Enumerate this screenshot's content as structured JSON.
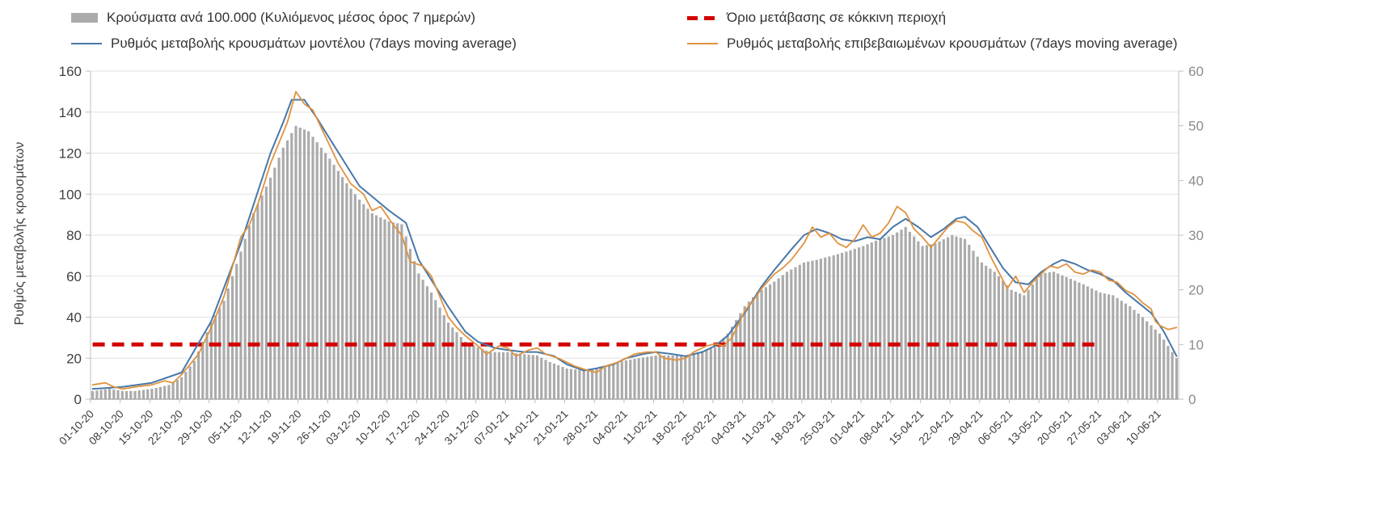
{
  "colors": {
    "bars": "#ababab",
    "model": "#4878a8",
    "confirmed": "#e0923f",
    "threshold": "#d40000",
    "grid": "#e2e2e2",
    "axis": "#bfbfbf",
    "axis_dark": "#a0a0a0",
    "tick_text": "#8c8c8c",
    "xlabel_text": "#3a3a3a"
  },
  "chart_data": {
    "type": "bar+line combo",
    "title": "",
    "ylabel_left": "Ρυθμός μεταβολής κρουσμάτων",
    "legend": {
      "bars_label": "Κρούσματα ανά 100.000 (Κυλιόμενος μέσος όρος 7 ημερών)",
      "threshold_label": "Όριο μετάβασης σε κόκκινη περιοχή",
      "model_label": "Ρυθμός μεταβολής κρουσμάτων μοντέλου (7days moving average)",
      "confirmed_label": "Ρυθμός μεταβολής επιβεβαιωμένων κρουσμάτων (7days moving average)"
    },
    "left_axis": {
      "min": 0,
      "max": 160,
      "ticks": [
        0,
        20,
        40,
        60,
        80,
        100,
        120,
        140,
        160
      ]
    },
    "right_axis": {
      "min": 0,
      "max": 60,
      "ticks": [
        0,
        10,
        20,
        30,
        40,
        50,
        60
      ]
    },
    "x_ticks": {
      "interval_days": 7,
      "labels": [
        "01-10-20",
        "08-10-20",
        "15-10-20",
        "22-10-20",
        "29-10-20",
        "05-11-20",
        "12-11-20",
        "19-11-20",
        "26-11-20",
        "03-12-20",
        "10-12-20",
        "17-12-20",
        "24-12-20",
        "31-12-20",
        "07-01-21",
        "14-01-21",
        "21-01-21",
        "28-01-21",
        "04-02-21",
        "11-02-21",
        "18-02-21",
        "25-02-21",
        "04-03-21",
        "11-03-21",
        "18-03-21",
        "25-03-21",
        "01-04-21",
        "08-04-21",
        "15-04-21",
        "22-04-21",
        "29-04-21",
        "06-05-21",
        "13-05-21",
        "20-05-21",
        "27-05-21",
        "03-06-21",
        "10-06-21"
      ]
    },
    "days_total": 257,
    "threshold": {
      "axis": "right",
      "value": 10,
      "start_day": 0,
      "end_day": 237,
      "style": "dashed"
    },
    "series": [
      {
        "id": "bars",
        "type": "bar",
        "axis": "right",
        "points": [
          [
            0,
            1.5
          ],
          [
            4,
            1.9
          ],
          [
            7,
            1.5
          ],
          [
            10,
            1.5
          ],
          [
            14,
            1.9
          ],
          [
            18,
            2.6
          ],
          [
            21,
            4
          ],
          [
            24,
            7
          ],
          [
            28,
            14
          ],
          [
            31,
            18
          ],
          [
            35,
            27
          ],
          [
            38,
            34
          ],
          [
            42,
            40.5
          ],
          [
            45,
            46
          ],
          [
            48,
            50
          ],
          [
            51,
            49
          ],
          [
            56,
            44
          ],
          [
            60,
            39.5
          ],
          [
            63,
            36.5
          ],
          [
            66,
            34
          ],
          [
            70,
            32.5
          ],
          [
            73,
            32
          ],
          [
            77,
            23
          ],
          [
            80,
            19.5
          ],
          [
            84,
            14
          ],
          [
            88,
            10.5
          ],
          [
            91,
            9.5
          ],
          [
            94,
            8.6
          ],
          [
            98,
            8.6
          ],
          [
            101,
            8.3
          ],
          [
            105,
            8
          ],
          [
            108,
            6.8
          ],
          [
            112,
            5.6
          ],
          [
            116,
            5.3
          ],
          [
            119,
            5.6
          ],
          [
            122,
            6.4
          ],
          [
            126,
            7.1
          ],
          [
            129,
            7.5
          ],
          [
            133,
            8
          ],
          [
            136,
            8
          ],
          [
            140,
            8
          ],
          [
            143,
            8.6
          ],
          [
            147,
            9.5
          ],
          [
            150,
            12
          ],
          [
            154,
            17
          ],
          [
            157,
            19.5
          ],
          [
            161,
            21.5
          ],
          [
            164,
            23.3
          ],
          [
            168,
            25
          ],
          [
            171,
            25.5
          ],
          [
            175,
            26.3
          ],
          [
            178,
            27
          ],
          [
            182,
            28
          ],
          [
            185,
            29
          ],
          [
            189,
            30
          ],
          [
            192,
            31.5
          ],
          [
            196,
            28
          ],
          [
            199,
            28.5
          ],
          [
            203,
            30
          ],
          [
            206,
            29.3
          ],
          [
            210,
            25
          ],
          [
            213,
            23.3
          ],
          [
            217,
            20
          ],
          [
            220,
            19
          ],
          [
            224,
            23
          ],
          [
            227,
            23.3
          ],
          [
            231,
            22
          ],
          [
            234,
            21
          ],
          [
            238,
            19.5
          ],
          [
            241,
            19
          ],
          [
            245,
            17
          ],
          [
            248,
            15
          ],
          [
            252,
            12
          ],
          [
            256,
            7.5
          ]
        ]
      },
      {
        "id": "model",
        "type": "line",
        "axis": "left",
        "points": [
          [
            0,
            5
          ],
          [
            7,
            6
          ],
          [
            14,
            8
          ],
          [
            21,
            13
          ],
          [
            28,
            38
          ],
          [
            35,
            76
          ],
          [
            42,
            120
          ],
          [
            45,
            135
          ],
          [
            47,
            146
          ],
          [
            50,
            146
          ],
          [
            53,
            137
          ],
          [
            56,
            127
          ],
          [
            63,
            104
          ],
          [
            70,
            92
          ],
          [
            74,
            86
          ],
          [
            77,
            68
          ],
          [
            84,
            45
          ],
          [
            88,
            33
          ],
          [
            91,
            28
          ],
          [
            95,
            25
          ],
          [
            98,
            24
          ],
          [
            102,
            23
          ],
          [
            105,
            23
          ],
          [
            109,
            21
          ],
          [
            112,
            17
          ],
          [
            116,
            14
          ],
          [
            119,
            15
          ],
          [
            123,
            17
          ],
          [
            126,
            20
          ],
          [
            130,
            22
          ],
          [
            133,
            23
          ],
          [
            137,
            22
          ],
          [
            140,
            21
          ],
          [
            144,
            23
          ],
          [
            147,
            26
          ],
          [
            150,
            31
          ],
          [
            154,
            42
          ],
          [
            158,
            55
          ],
          [
            161,
            63
          ],
          [
            165,
            73
          ],
          [
            168,
            80
          ],
          [
            171,
            83
          ],
          [
            174,
            81
          ],
          [
            177,
            78
          ],
          [
            180,
            77
          ],
          [
            183,
            79
          ],
          [
            186,
            78
          ],
          [
            189,
            84
          ],
          [
            192,
            88
          ],
          [
            195,
            84
          ],
          [
            198,
            79
          ],
          [
            201,
            83
          ],
          [
            204,
            88
          ],
          [
            206,
            89
          ],
          [
            209,
            84
          ],
          [
            212,
            74
          ],
          [
            215,
            64
          ],
          [
            218,
            57
          ],
          [
            221,
            56
          ],
          [
            224,
            62
          ],
          [
            227,
            66
          ],
          [
            229,
            68
          ],
          [
            232,
            66
          ],
          [
            235,
            63
          ],
          [
            238,
            61
          ],
          [
            241,
            58
          ],
          [
            244,
            52
          ],
          [
            247,
            47
          ],
          [
            250,
            42
          ],
          [
            253,
            33
          ],
          [
            256,
            21
          ]
        ]
      },
      {
        "id": "confirmed",
        "type": "line",
        "axis": "left",
        "points": [
          [
            0,
            7
          ],
          [
            3,
            8
          ],
          [
            5,
            6
          ],
          [
            7,
            5
          ],
          [
            10,
            6
          ],
          [
            14,
            7
          ],
          [
            17,
            9
          ],
          [
            19,
            8
          ],
          [
            21,
            12
          ],
          [
            25,
            22
          ],
          [
            28,
            35
          ],
          [
            31,
            50
          ],
          [
            35,
            79
          ],
          [
            37,
            85
          ],
          [
            39,
            95
          ],
          [
            42,
            115
          ],
          [
            44,
            125
          ],
          [
            46,
            135
          ],
          [
            48,
            150
          ],
          [
            50,
            144
          ],
          [
            52,
            141
          ],
          [
            55,
            128
          ],
          [
            58,
            115
          ],
          [
            61,
            105
          ],
          [
            64,
            100
          ],
          [
            66,
            92
          ],
          [
            68,
            94
          ],
          [
            71,
            85
          ],
          [
            73,
            80
          ],
          [
            75,
            67
          ],
          [
            78,
            65
          ],
          [
            80,
            60
          ],
          [
            82,
            50
          ],
          [
            84,
            40
          ],
          [
            86,
            35
          ],
          [
            88,
            31
          ],
          [
            91,
            26
          ],
          [
            93,
            22
          ],
          [
            96,
            26
          ],
          [
            98,
            25
          ],
          [
            100,
            21
          ],
          [
            103,
            24
          ],
          [
            105,
            25
          ],
          [
            107,
            22
          ],
          [
            110,
            20
          ],
          [
            112,
            18
          ],
          [
            114,
            16
          ],
          [
            117,
            14
          ],
          [
            119,
            13
          ],
          [
            121,
            16
          ],
          [
            124,
            18
          ],
          [
            126,
            20
          ],
          [
            128,
            22
          ],
          [
            131,
            23
          ],
          [
            133,
            23
          ],
          [
            135,
            20
          ],
          [
            138,
            19
          ],
          [
            140,
            20
          ],
          [
            142,
            23
          ],
          [
            145,
            26
          ],
          [
            147,
            27
          ],
          [
            149,
            26
          ],
          [
            151,
            30
          ],
          [
            154,
            43
          ],
          [
            156,
            48
          ],
          [
            158,
            54
          ],
          [
            161,
            61
          ],
          [
            163,
            64
          ],
          [
            165,
            68
          ],
          [
            168,
            76
          ],
          [
            170,
            84
          ],
          [
            172,
            79
          ],
          [
            174,
            81
          ],
          [
            176,
            76
          ],
          [
            178,
            74
          ],
          [
            180,
            78
          ],
          [
            182,
            85
          ],
          [
            184,
            79
          ],
          [
            186,
            81
          ],
          [
            188,
            86
          ],
          [
            190,
            94
          ],
          [
            192,
            91
          ],
          [
            194,
            83
          ],
          [
            196,
            79
          ],
          [
            198,
            74
          ],
          [
            200,
            79
          ],
          [
            202,
            84
          ],
          [
            204,
            87
          ],
          [
            206,
            86
          ],
          [
            208,
            82
          ],
          [
            210,
            79
          ],
          [
            212,
            70
          ],
          [
            214,
            62
          ],
          [
            216,
            54
          ],
          [
            218,
            60
          ],
          [
            220,
            52
          ],
          [
            222,
            57
          ],
          [
            224,
            61
          ],
          [
            226,
            65
          ],
          [
            228,
            64
          ],
          [
            230,
            66
          ],
          [
            232,
            62
          ],
          [
            234,
            61
          ],
          [
            236,
            63
          ],
          [
            238,
            62
          ],
          [
            240,
            58
          ],
          [
            242,
            57
          ],
          [
            244,
            53
          ],
          [
            246,
            51
          ],
          [
            248,
            47
          ],
          [
            250,
            44
          ],
          [
            251,
            38
          ],
          [
            252,
            36
          ],
          [
            254,
            34
          ],
          [
            256,
            35
          ]
        ]
      }
    ]
  }
}
